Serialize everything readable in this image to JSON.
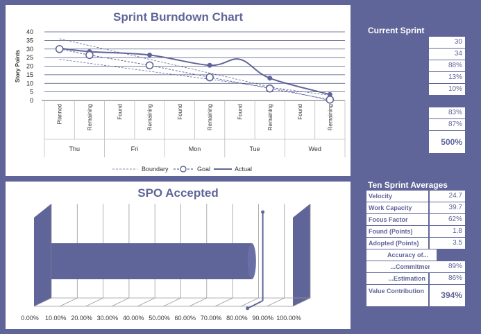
{
  "burndown": {
    "title": "Sprint Burndown Chart",
    "ylabel": "Story Points",
    "legend": [
      "Boundary",
      "Goal",
      "Actual"
    ]
  },
  "spo": {
    "title": "SPO Accepted"
  },
  "current_sprint": {
    "title": "Current Sprint",
    "group1": [
      "30",
      "34",
      "88%",
      "13%",
      "10%"
    ],
    "group2": [
      "83%",
      "87%"
    ],
    "highlight": "500%"
  },
  "averages": {
    "title": "Ten Sprint Averages",
    "velocity_label": "Velocity",
    "velocity_value": "24.7",
    "work_capacity_label": "Work Capacity",
    "work_capacity_value": "39.7",
    "focus_factor_label": "Focus Factor",
    "focus_factor_value": "62%",
    "found_label": "Found (Points)",
    "found_value": "1.8",
    "adopted_label": "Adopted (Points)",
    "adopted_value": "3.5",
    "accuracy_label": "Accuracy of...",
    "commitment_label": "...Commitment",
    "commitment_value": "89%",
    "estimation_label": "...Estimation",
    "estimation_value": "86%",
    "value_contribution_label": "Value Contribution",
    "value_contribution_value": "394%"
  },
  "chart_data": [
    {
      "type": "line",
      "title": "Sprint Burndown Chart",
      "ylabel": "Story Points",
      "ylim": [
        0,
        40
      ],
      "yticks": [
        "0",
        "5",
        "10",
        "15",
        "20",
        "25",
        "30",
        "35",
        "40"
      ],
      "categories": [
        "Planned",
        "Remaining",
        "Found",
        "Remaining",
        "Found",
        "Remaining",
        "Found",
        "Remaining",
        "Found",
        "Remaining"
      ],
      "groups": [
        {
          "label": "Thu",
          "span": 2
        },
        {
          "label": "Fri",
          "span": 2
        },
        {
          "label": "Mon",
          "span": 2
        },
        {
          "label": "Tue",
          "span": 2
        },
        {
          "label": "Wed",
          "span": 2
        }
      ],
      "grid": true,
      "legend_position": "bottom",
      "series": [
        {
          "name": "Actual",
          "points": [
            [
              0,
              30.5
            ],
            [
              1,
              28.5
            ],
            [
              3,
              26.5
            ],
            [
              5,
              20.5
            ],
            [
              6,
              24
            ],
            [
              7,
              13
            ],
            [
              9,
              3.5
            ]
          ]
        },
        {
          "name": "Goal",
          "points": [
            [
              0,
              30
            ],
            [
              1,
              26.5
            ],
            [
              3,
              20.5
            ],
            [
              5,
              13.5
            ],
            [
              7,
              7
            ],
            [
              9,
              0.5
            ]
          ]
        },
        {
          "name": "Boundary",
          "points": [
            [
              0,
              36
            ],
            [
              9,
              0
            ]
          ]
        },
        {
          "name": "Boundary",
          "points": [
            [
              0,
              24
            ],
            [
              9,
              3
            ]
          ]
        }
      ]
    },
    {
      "type": "bar",
      "title": "SPO Accepted",
      "orientation": "horizontal",
      "xlim": [
        0,
        1
      ],
      "xticks": [
        "0.00%",
        "10.00%",
        "20.00%",
        "30.00%",
        "40.00%",
        "50.00%",
        "60.00%",
        "70.00%",
        "80.00%",
        "90.00%",
        "100.00%"
      ],
      "values": [
        0.83
      ],
      "target": 0.83
    }
  ]
}
